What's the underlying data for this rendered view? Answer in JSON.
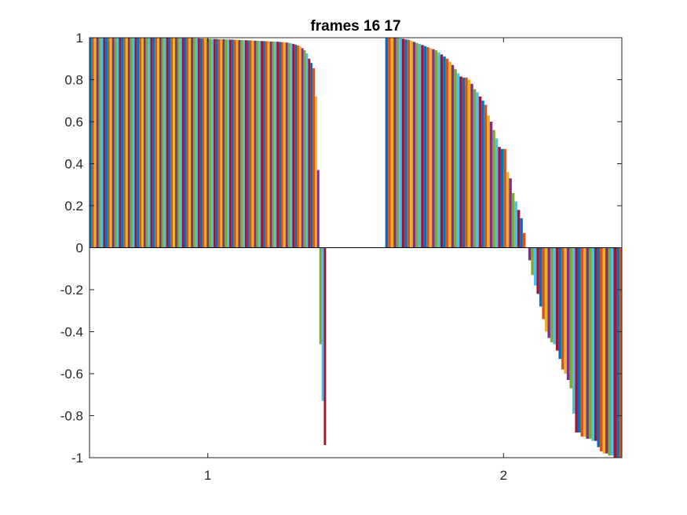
{
  "chart_data": {
    "type": "bar",
    "title": "frames 16 17",
    "xlabel": "",
    "ylabel": "",
    "xlim": [
      0.6,
      2.4
    ],
    "ylim": [
      -1,
      1
    ],
    "x_ticks": [
      1,
      2
    ],
    "x_tick_labels": [
      "1",
      "2"
    ],
    "y_ticks": [
      -1,
      -0.8,
      -0.6,
      -0.4,
      -0.2,
      0,
      0.2,
      0.4,
      0.6,
      0.8,
      1
    ],
    "y_tick_labels": [
      "-1",
      "-0.8",
      "-0.6",
      "-0.4",
      "-0.2",
      "0",
      "0.2",
      "0.4",
      "0.6",
      "0.8",
      "1"
    ],
    "grid": false,
    "legend": "none",
    "series_colors": [
      "#0072BD",
      "#D95319",
      "#EDB120",
      "#7E2F8E",
      "#77AC30",
      "#4DBEEE",
      "#A2142F"
    ],
    "groups": [
      {
        "category": "1",
        "values": [
          1.0,
          1.0,
          1.0,
          1.0,
          1.0,
          1.0,
          1.0,
          1.0,
          1.0,
          1.0,
          1.0,
          1.0,
          1.0,
          1.0,
          1.0,
          1.0,
          1.0,
          1.0,
          1.0,
          1.0,
          1.0,
          1.0,
          1.0,
          1.0,
          1.0,
          1.0,
          1.0,
          1.0,
          1.0,
          1.0,
          1.0,
          1.0,
          1.0,
          0.999,
          0.999,
          0.999,
          0.999,
          0.999,
          0.999,
          0.999,
          0.999,
          0.998,
          0.998,
          0.998,
          0.998,
          0.998,
          0.997,
          0.997,
          0.997,
          0.996,
          0.996,
          0.996,
          0.995,
          0.995,
          0.994,
          0.994,
          0.994,
          0.993,
          0.993,
          0.993,
          0.992,
          0.992,
          0.991,
          0.991,
          0.99,
          0.99,
          0.989,
          0.989,
          0.988,
          0.988,
          0.987,
          0.987,
          0.986,
          0.986,
          0.985,
          0.985,
          0.984,
          0.984,
          0.983,
          0.983,
          0.982,
          0.982,
          0.981,
          0.981,
          0.98,
          0.979,
          0.978,
          0.977,
          0.975,
          0.973,
          0.97,
          0.967,
          0.963,
          0.958,
          0.95,
          0.94,
          0.925,
          0.9,
          0.88,
          0.855,
          0.72,
          0.37,
          -0.46,
          -0.73,
          -0.94
        ]
      },
      {
        "category": "2",
        "values": [
          1.0,
          1.0,
          1.0,
          1.0,
          1.0,
          0.997,
          0.995,
          0.992,
          0.99,
          0.985,
          0.98,
          0.975,
          0.97,
          0.965,
          0.96,
          0.955,
          0.95,
          0.945,
          0.94,
          0.93,
          0.92,
          0.91,
          0.9,
          0.885,
          0.87,
          0.85,
          0.83,
          0.815,
          0.81,
          0.81,
          0.8,
          0.78,
          0.755,
          0.74,
          0.72,
          0.7,
          0.68,
          0.63,
          0.6,
          0.56,
          0.52,
          0.48,
          0.47,
          0.47,
          0.36,
          0.33,
          0.26,
          0.22,
          0.18,
          0.14,
          0.07,
          0.0,
          -0.06,
          -0.13,
          -0.18,
          -0.22,
          -0.28,
          -0.34,
          -0.4,
          -0.43,
          -0.45,
          -0.46,
          -0.49,
          -0.53,
          -0.58,
          -0.6,
          -0.63,
          -0.67,
          -0.79,
          -0.88,
          -0.88,
          -0.9,
          -0.9,
          -0.91,
          -0.91,
          -0.92,
          -0.92,
          -0.95,
          -0.97,
          -0.98,
          -0.98,
          -0.99,
          -0.99,
          -1.0,
          -1.0,
          -1.0
        ]
      }
    ]
  }
}
